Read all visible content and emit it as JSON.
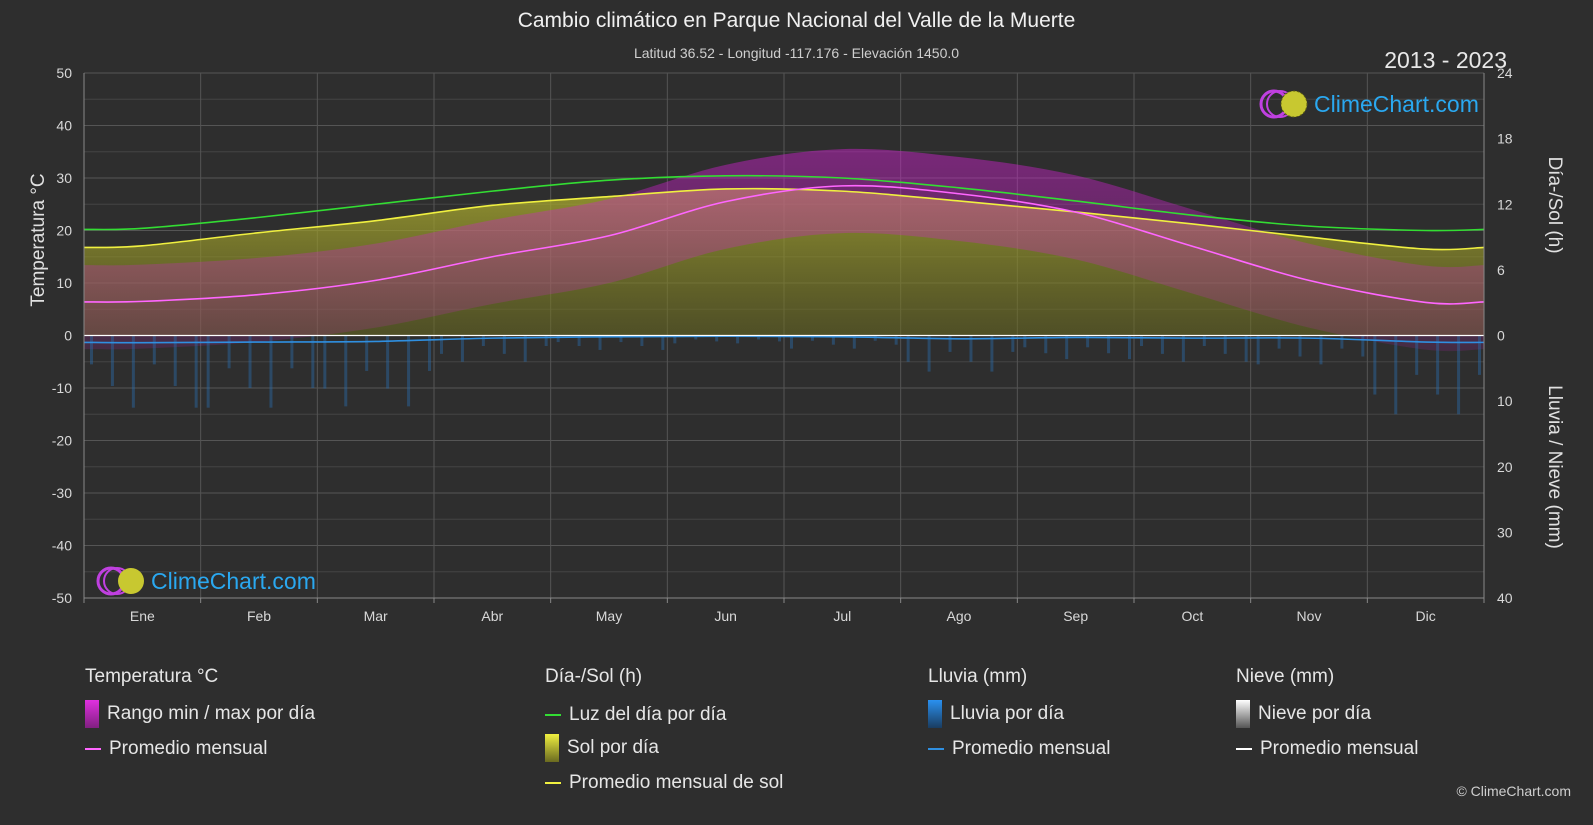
{
  "title": "Cambio climático en Parque Nacional del Valle de la Muerte",
  "subtitle": "Latitud 36.52 - Longitud -117.176 - Elevación 1450.0",
  "years": "2013 - 2023",
  "copyright": "© ClimeChart.com",
  "logo_text": "ClimeChart.com",
  "colors": {
    "background": "#2e2e2e",
    "temp_range": "#d020d0",
    "temp_avg": "#ff66ff",
    "daylight": "#33dd33",
    "sunshine_fill": "#a8a82a",
    "sunshine_avg": "#f0f040",
    "rain": "#2288dd",
    "rain_avg": "#2f8fe0",
    "snow_avg": "#ffffff"
  },
  "chart_data": {
    "type": "line",
    "months": [
      "Ene",
      "Feb",
      "Mar",
      "Abr",
      "May",
      "Jun",
      "Jul",
      "Ago",
      "Sep",
      "Oct",
      "Nov",
      "Dic"
    ],
    "y_left": {
      "label": "Temperatura °C",
      "ticks": [
        50,
        40,
        30,
        20,
        10,
        0,
        -10,
        -20,
        -30,
        -40,
        -50
      ],
      "range": [
        -50,
        50
      ]
    },
    "y_right_top": {
      "label": "Día-/Sol (h)",
      "ticks": [
        24,
        18,
        12,
        6,
        0
      ],
      "range": [
        0,
        24
      ]
    },
    "y_right_bottom": {
      "label": "Lluvia / Nieve (mm)",
      "ticks": [
        0,
        10,
        20,
        30,
        40
      ],
      "range": [
        0,
        40
      ]
    },
    "series": [
      {
        "name": "Promedio mensual",
        "group": "temperature",
        "unit": "°C",
        "values": [
          6.5,
          7.8,
          10.5,
          15.0,
          19.0,
          25.5,
          28.5,
          27.0,
          23.5,
          17.0,
          10.5,
          6.3
        ]
      },
      {
        "name": "Luz del día por día",
        "group": "sun",
        "unit": "h",
        "values": [
          9.8,
          10.8,
          12.0,
          13.2,
          14.2,
          14.6,
          14.4,
          13.5,
          12.3,
          11.0,
          10.0,
          9.6
        ]
      },
      {
        "name": "Promedio mensual de sol",
        "group": "sun",
        "unit": "h",
        "values": [
          8.2,
          9.4,
          10.5,
          11.9,
          12.7,
          13.4,
          13.2,
          12.3,
          11.3,
          10.2,
          9.0,
          7.9
        ]
      },
      {
        "name": "Promedio mensual",
        "group": "rain",
        "unit": "mm",
        "values": [
          1.1,
          1.0,
          0.9,
          0.4,
          0.2,
          0.1,
          0.2,
          0.5,
          0.3,
          0.4,
          0.4,
          1.0
        ]
      },
      {
        "name": "Promedio mensual",
        "group": "snow",
        "unit": "mm",
        "values": [
          0,
          0,
          0,
          0,
          0,
          0,
          0,
          0,
          0,
          0,
          0,
          0
        ]
      }
    ]
  },
  "legend": {
    "temperature": {
      "header": "Temperatura °C",
      "items": [
        "Rango min / max por día",
        "Promedio mensual"
      ]
    },
    "sun": {
      "header": "Día-/Sol (h)",
      "items": [
        "Luz del día por día",
        "Sol por día",
        "Promedio mensual de sol"
      ]
    },
    "rain": {
      "header": "Lluvia (mm)",
      "items": [
        "Lluvia por día",
        "Promedio mensual"
      ]
    },
    "snow": {
      "header": "Nieve (mm)",
      "items": [
        "Nieve por día",
        "Promedio mensual"
      ]
    }
  }
}
